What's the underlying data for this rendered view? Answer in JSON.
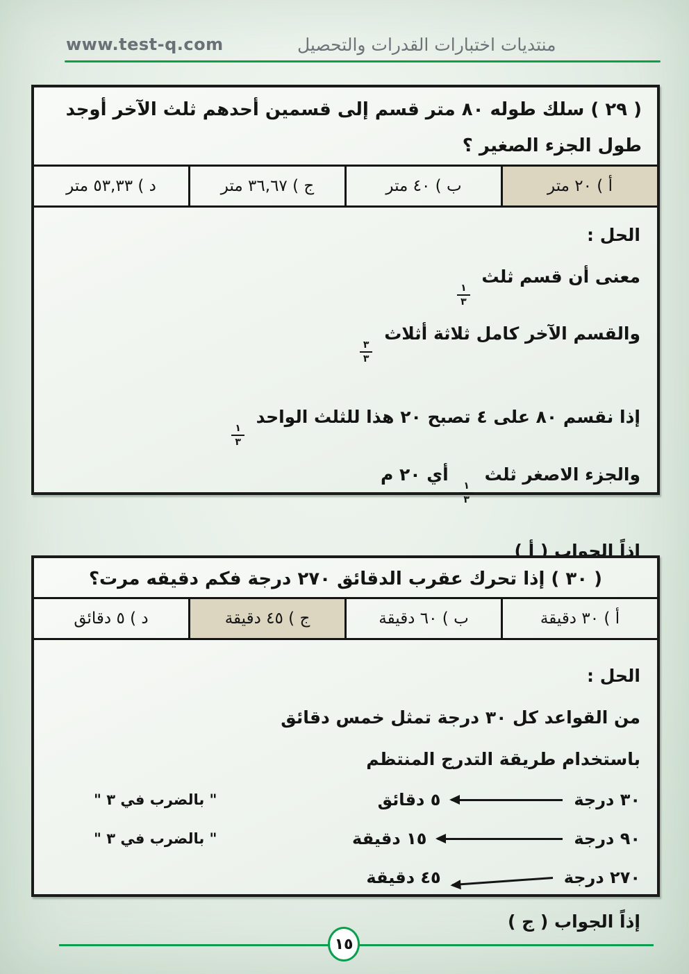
{
  "header": {
    "site_url": "www.test-q.com",
    "site_title": "منتديات اختبارات القدرات والتحصيل"
  },
  "footer": {
    "page_number": "١٥"
  },
  "colors": {
    "accent_green": "#0a9e4f",
    "highlight_beige": "#dcd6c0",
    "header_gray": "#6b7076",
    "box_border_black": "#1a1a1a"
  },
  "q29": {
    "question": "( ٢٩ ) سلك طوله ٨٠ متر قسم إلى قسمين أحدهم ثلث الآخر أوجد طول الجزء الصغير ؟",
    "options": {
      "a": "أ ) ٢٠ متر",
      "b": "ب ) ٤٠ متر",
      "c": "ج ) ٣٦,٦٧ متر",
      "d": "د ) ٥٣,٣٣ متر"
    },
    "correct_option": "أ",
    "solution": {
      "heading": "الحل :",
      "line1": "معنى أن قسم ثلث",
      "line1_frac": {
        "num": "١",
        "den": "٣"
      },
      "line2": "والقسم الآخر كامل ثلاثة أثلاث",
      "line2_frac": {
        "num": "٣",
        "den": "٣"
      },
      "line3": "إذا نقسم ٨٠ على ٤ تصبح ٢٠ هذا للثلث الواحد",
      "line3_frac": {
        "num": "١",
        "den": "٣"
      },
      "line4": "والجزء الاصغر ثلث",
      "line4_frac": {
        "num": "١",
        "den": "٣"
      },
      "line4_after": "أي ٢٠ م",
      "answer": "إذاً الجواب ( أ )"
    }
  },
  "q30": {
    "question": "( ٣٠ ) إذا تحرك عقرب الدقائق ٢٧٠ درجة فكم دقيقه مرت؟",
    "options": {
      "a": "أ ) ٣٠ دقيقة",
      "b": "ب ) ٦٠ دقيقة",
      "c": "ج ) ٤٥ دقيقة",
      "d": "د ) ٥ دقائق"
    },
    "correct_option": "ج",
    "solution": {
      "heading": "الحل :",
      "line1": "من القواعد كل ٣٠ درجة تمثل خمس دقائق",
      "line2": "باستخدام طريقة التدرج المنتظم",
      "rows": [
        {
          "degrees": "٣٠ درجة",
          "minutes": "٥ دقائق",
          "note": "\" بالضرب في ٣ \""
        },
        {
          "degrees": "٩٠ درجة",
          "minutes": "١٥ دقيقة",
          "note": "\" بالضرب في ٣ \""
        },
        {
          "degrees": "٢٧٠ درجة",
          "minutes": "٤٥ دقيقة",
          "note": ""
        }
      ],
      "answer": "إذاً الجواب ( ج )"
    }
  }
}
